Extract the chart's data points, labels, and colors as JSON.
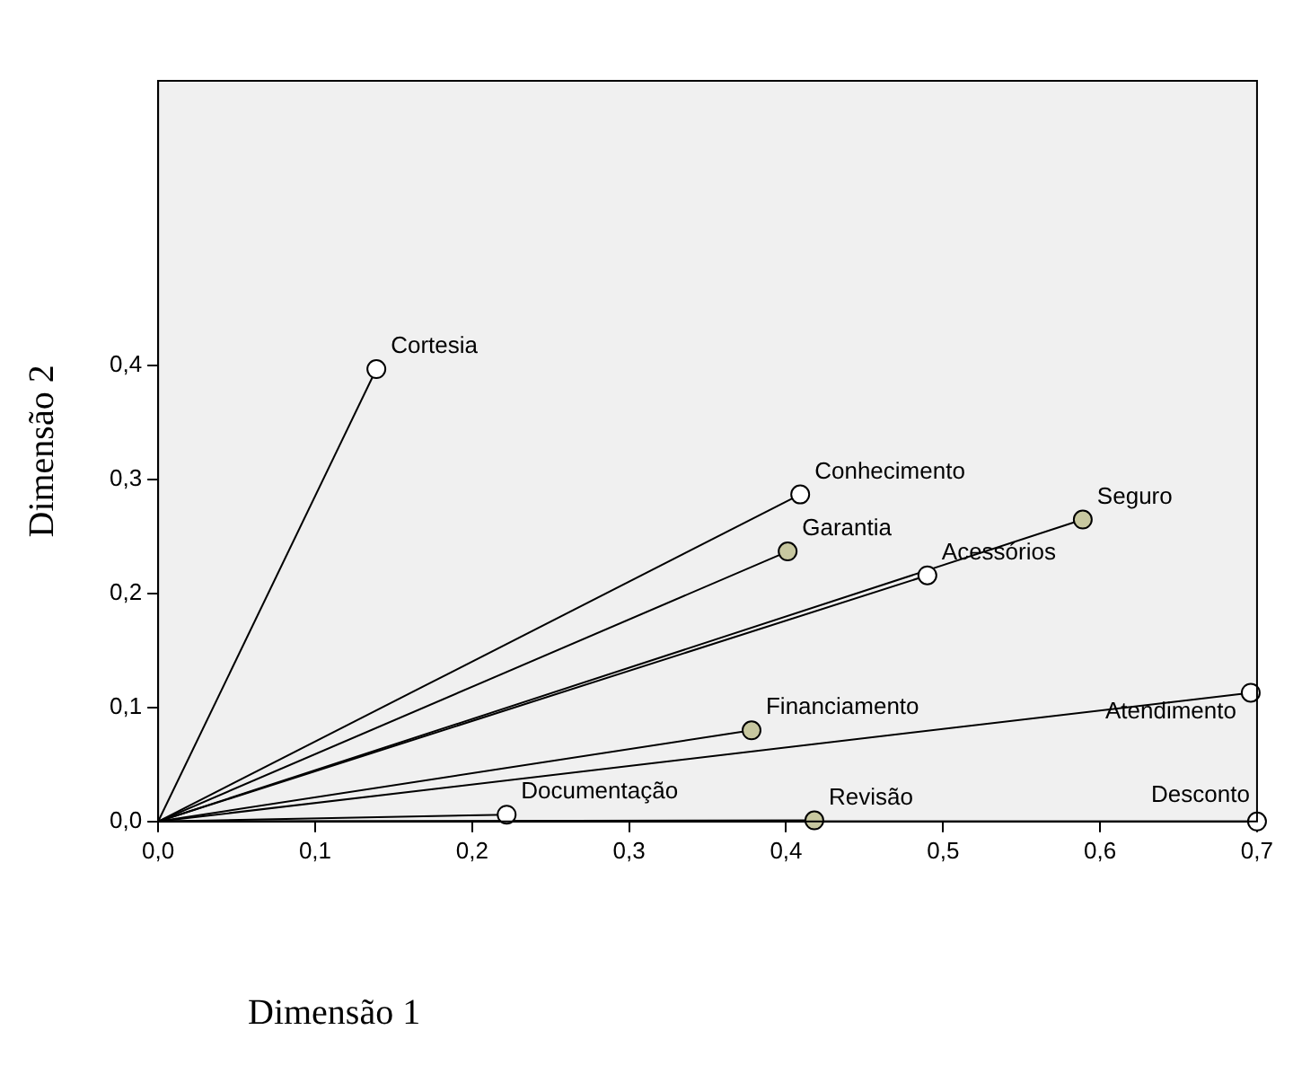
{
  "chart_data": {
    "type": "scatter",
    "xlabel": "Dimensão 1",
    "ylabel": "Dimensão 2",
    "x": [
      0.139,
      0.409,
      0.401,
      0.589,
      0.49,
      0.378,
      0.696,
      0.222,
      0.418,
      0.7
    ],
    "values": [
      0.397,
      0.287,
      0.237,
      0.265,
      0.216,
      0.08,
      0.113,
      0.006,
      0.001,
      0.0
    ],
    "colors": [
      "#ffffff",
      "#ffffff",
      "#c8c8a0",
      "#c8c8a0",
      "#ffffff",
      "#c8c8a0",
      "#ffffff",
      "#ffffff",
      "#c8c8a0",
      "#ffffff"
    ],
    "marker": "circle",
    "xlim": [
      0,
      0.7
    ],
    "ylim": [
      0,
      0.65
    ],
    "xticks": [
      {
        "value": 0,
        "label": "0,0"
      },
      {
        "value": 0.1,
        "label": "0,1"
      },
      {
        "value": 0.2,
        "label": "0,2"
      },
      {
        "value": 0.3,
        "label": "0,3"
      },
      {
        "value": 0.4,
        "label": "0,4"
      },
      {
        "value": 0.5,
        "label": "0,5"
      },
      {
        "value": 0.6,
        "label": "0,6"
      },
      {
        "value": 0.7,
        "label": "0,7"
      }
    ],
    "yticks": [
      {
        "value": 0,
        "label": "0,0"
      },
      {
        "value": 0.1,
        "label": "0,1"
      },
      {
        "value": 0.2,
        "label": "0,2"
      },
      {
        "value": 0.3,
        "label": "0,3"
      },
      {
        "value": 0.4,
        "label": "0,4"
      }
    ],
    "grid": false,
    "legend": false,
    "annotations": [
      {
        "text": "Cortesia",
        "x": 0.139,
        "y": 0.397
      },
      {
        "text": "Conhecimento",
        "x": 0.409,
        "y": 0.287
      },
      {
        "text": "Garantia",
        "x": 0.401,
        "y": 0.237
      },
      {
        "text": "Seguro",
        "x": 0.589,
        "y": 0.265
      },
      {
        "text": "Acessórios",
        "x": 0.49,
        "y": 0.216
      },
      {
        "text": "Financiamento",
        "x": 0.378,
        "y": 0.08
      },
      {
        "text": "Atendimento",
        "x": 0.696,
        "y": 0.113
      },
      {
        "text": "Documentação",
        "x": 0.222,
        "y": 0.006
      },
      {
        "text": "Revisão",
        "x": 0.418,
        "y": 0.001
      },
      {
        "text": "Desconto",
        "x": 0.7,
        "y": 0.0
      }
    ]
  }
}
